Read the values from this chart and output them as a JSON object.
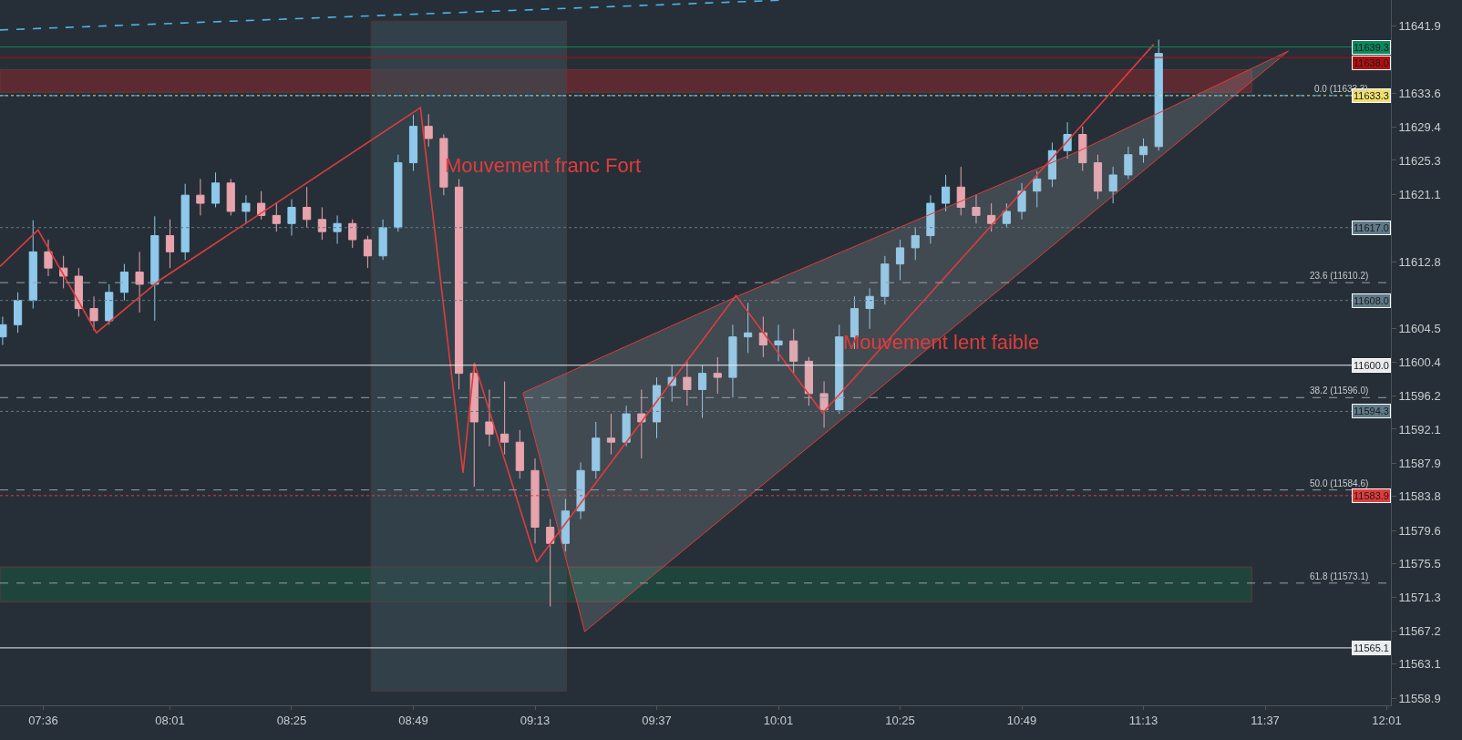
{
  "chart_data": {
    "type": "candlestick",
    "x": [
      7.4667,
      7.5167,
      7.5667,
      7.6167,
      7.6667,
      7.7167,
      7.7667,
      7.8167,
      7.8667,
      7.9167,
      7.9667,
      8.0167,
      8.0667,
      8.1167,
      8.1667,
      8.2167,
      8.2667,
      8.3167,
      8.3667,
      8.4167,
      8.4667,
      8.5167,
      8.5667,
      8.6167,
      8.6667,
      8.7167,
      8.7667,
      8.8167,
      8.8667,
      8.9167,
      8.9667,
      9.0167,
      9.0667,
      9.1167,
      9.1667,
      9.2167,
      9.2667,
      9.3167,
      9.3667,
      9.4167,
      9.4667,
      9.5167,
      9.5667,
      9.6167,
      9.6667,
      9.7167,
      9.7667,
      9.8167,
      9.8667,
      9.9167,
      9.9667,
      10.0167,
      10.0667,
      10.1167,
      10.1667,
      10.2167,
      10.2667,
      10.3167,
      10.3667,
      10.4167,
      10.4667,
      10.5167,
      10.5667,
      10.6167,
      10.6667,
      10.7167,
      10.7667,
      10.8167,
      10.8667,
      10.9167,
      10.9667,
      11.0167,
      11.0667,
      11.1167,
      11.1667,
      11.2167,
      11.2667
    ],
    "ohlc": [
      [
        11603.5,
        11606,
        11602.5,
        11605
      ],
      [
        11605,
        11609,
        11604,
        11608
      ],
      [
        11608,
        11617.9,
        11607,
        11614
      ],
      [
        11614,
        11615.5,
        11611,
        11612
      ],
      [
        11612,
        11613.5,
        11609.5,
        11611
      ],
      [
        11611,
        11612,
        11606,
        11607
      ],
      [
        11607,
        11608.5,
        11604.3,
        11605.5
      ],
      [
        11605.5,
        11610,
        11605,
        11609
      ],
      [
        11609,
        11612.5,
        11608,
        11611.5
      ],
      [
        11611.5,
        11614,
        11606.5,
        11610
      ],
      [
        11610,
        11618.4,
        11605.5,
        11616
      ],
      [
        11616,
        11618,
        11612,
        11614
      ],
      [
        11614,
        11622.4,
        11613,
        11621
      ],
      [
        11621,
        11623,
        11618.5,
        11620
      ],
      [
        11620,
        11623.8,
        11619.5,
        11622.5
      ],
      [
        11622.5,
        11623,
        11618.5,
        11619
      ],
      [
        11619,
        11621,
        11617.5,
        11620
      ],
      [
        11620,
        11621.5,
        11618,
        11618.5
      ],
      [
        11618.5,
        11620,
        11616.5,
        11617.5
      ],
      [
        11617.5,
        11620.5,
        11616,
        11619.5
      ],
      [
        11619.5,
        11622,
        11617,
        11618
      ],
      [
        11618,
        11619.5,
        11615.5,
        11616.5
      ],
      [
        11616.5,
        11618.5,
        11615,
        11617.5
      ],
      [
        11617.5,
        11618,
        11614.5,
        11615.5
      ],
      [
        11615.5,
        11616,
        11612,
        11613.5
      ],
      [
        11613.5,
        11618,
        11613,
        11617
      ],
      [
        11617,
        11626,
        11616.5,
        11625
      ],
      [
        11625,
        11630.9,
        11624,
        11629.5
      ],
      [
        11629.5,
        11631,
        11627,
        11628
      ],
      [
        11628,
        11628.5,
        11621,
        11622
      ],
      [
        11622,
        11623,
        11597,
        11599
      ],
      [
        11599,
        11600,
        11585,
        11593
      ],
      [
        11593,
        11597,
        11590,
        11591.5
      ],
      [
        11591.5,
        11598,
        11589,
        11590.5
      ],
      [
        11590.5,
        11592,
        11586,
        11587
      ],
      [
        11587,
        11588.5,
        11578,
        11580
      ],
      [
        11580,
        11581,
        11570.2,
        11578
      ],
      [
        11578,
        11583.5,
        11577,
        11582
      ],
      [
        11582,
        11588,
        11581,
        11587
      ],
      [
        11587,
        11593,
        11586,
        11591
      ],
      [
        11591,
        11594,
        11589,
        11590.5
      ],
      [
        11590.5,
        11595,
        11590,
        11594
      ],
      [
        11594,
        11597,
        11588.5,
        11593
      ],
      [
        11593,
        11598.5,
        11591,
        11597.5
      ],
      [
        11597.5,
        11600,
        11595.5,
        11598.5
      ],
      [
        11598.5,
        11600.5,
        11595,
        11597
      ],
      [
        11597,
        11600,
        11593.5,
        11599
      ],
      [
        11599,
        11601,
        11596.5,
        11598.5
      ],
      [
        11598.5,
        11605,
        11596,
        11603.5
      ],
      [
        11603.5,
        11607.7,
        11601.5,
        11604
      ],
      [
        11604,
        11606,
        11601,
        11602.5
      ],
      [
        11602.5,
        11605,
        11600.5,
        11603
      ],
      [
        11603,
        11604.5,
        11599,
        11600.5
      ],
      [
        11600.5,
        11601,
        11595,
        11596.5
      ],
      [
        11596.5,
        11598,
        11592.3,
        11594.5
      ],
      [
        11594.5,
        11605,
        11594,
        11603.5
      ],
      [
        11603.5,
        11608.5,
        11602,
        11607
      ],
      [
        11607,
        11609.5,
        11604.5,
        11608.5
      ],
      [
        11608.5,
        11613.5,
        11607.5,
        11612.5
      ],
      [
        11612.5,
        11615.5,
        11610.5,
        11614.5
      ],
      [
        11614.5,
        11617,
        11613,
        11616
      ],
      [
        11616,
        11621,
        11615,
        11620
      ],
      [
        11620,
        11623.5,
        11619,
        11622
      ],
      [
        11622,
        11624.5,
        11618.5,
        11619.5
      ],
      [
        11619.5,
        11621,
        11617.5,
        11618.5
      ],
      [
        11618.5,
        11620,
        11616.5,
        11617.5
      ],
      [
        11617.5,
        11620,
        11617,
        11619
      ],
      [
        11619,
        11622.5,
        11618,
        11621.5
      ],
      [
        11621.5,
        11624,
        11619.5,
        11623
      ],
      [
        11623,
        11627.5,
        11622,
        11626.5
      ],
      [
        11626.5,
        11630,
        11625.5,
        11628.5
      ],
      [
        11628.5,
        11629.5,
        11624,
        11625
      ],
      [
        11625,
        11626,
        11620.5,
        11621.5
      ],
      [
        11621.5,
        11624.5,
        11620,
        11623.5
      ],
      [
        11623.5,
        11627,
        11623,
        11626
      ],
      [
        11626,
        11628,
        11625,
        11627
      ],
      [
        11627,
        11640.2,
        11626.5,
        11638.5
      ]
    ],
    "series": [
      {
        "type": "area",
        "color": "#e03c3c",
        "x": [
          9.177,
          9.887,
          11.002,
          11.693,
          9.38,
          9.177
        ],
        "values": [
          11596.6,
          11608.6,
          11626.4,
          11638.8,
          11567.1,
          11596.6
        ]
      },
      {
        "type": "line",
        "color": "#e03c3c",
        "x": [
          7.458,
          7.583,
          7.775,
          7.983,
          8.84,
          8.98,
          9.017,
          9.222,
          9.877,
          10.162,
          11.008,
          11.25
        ],
        "values": [
          11612.2,
          11616.7,
          11604.0,
          11610.5,
          11631.8,
          11586.7,
          11600.3,
          11575.7,
          11608.6,
          11594.1,
          11629.4,
          11639.6
        ]
      },
      {
        "type": "line",
        "color": "#4fb3e8",
        "line_style": "dashed",
        "x": [
          7.458,
          10.042
        ],
        "values": [
          11641.4,
          11645.1
        ]
      }
    ],
    "ref_lines": [
      {
        "axis": "y",
        "value": 11639.3,
        "label": "11639.3",
        "color": "#0b8a5e",
        "line_style": "solid"
      },
      {
        "axis": "y",
        "value": 11638.0,
        "label": "11638.0",
        "color": "#b01010",
        "line_style": "solid"
      },
      {
        "axis": "y",
        "value": 11633.3,
        "label": "11633.3",
        "color": "#f0e070",
        "line_style": "dotted"
      },
      {
        "axis": "y",
        "value": 11633.3,
        "label": "0.0 (11633.3)",
        "color": "#5a9fc8",
        "line_style": "dashed"
      },
      {
        "axis": "y",
        "value": 11617.0,
        "label": "11617.0",
        "color": "#5f7a88",
        "line_style": "dotted"
      },
      {
        "axis": "y",
        "value": 11610.2,
        "label": "23.6 (11610.2)",
        "color": "#9aa0a6",
        "line_style": "dashed"
      },
      {
        "axis": "y",
        "value": 11608.0,
        "label": "11608.0",
        "color": "#5f7a88",
        "line_style": "dotted"
      },
      {
        "axis": "y",
        "value": 11600.0,
        "label": "11600.0",
        "color": "#e8ecef",
        "line_style": "solid"
      },
      {
        "axis": "y",
        "value": 11596.0,
        "label": "38.2 (11596.0)",
        "color": "#9aa0a6",
        "line_style": "dashed"
      },
      {
        "axis": "y",
        "value": 11594.3,
        "label": "11594.3",
        "color": "#5f7a88",
        "line_style": "dotted"
      },
      {
        "axis": "y",
        "value": 11584.6,
        "label": "50.0 (11584.6)",
        "color": "#9aa0a6",
        "line_style": "dashed"
      },
      {
        "axis": "y",
        "value": 11583.9,
        "label": "11583.9",
        "color": "#e03c3c",
        "line_style": "dotted"
      },
      {
        "axis": "y",
        "value": 11573.1,
        "label": "61.8 (11573.1)",
        "color": "#9aa0a6",
        "line_style": "dashed"
      },
      {
        "axis": "y",
        "value": 11565.1,
        "label": "11565.1",
        "color": "#e8ecef",
        "line_style": "solid"
      }
    ],
    "bands": [
      {
        "axis": "y",
        "from": 11633.7,
        "to": 11636.5,
        "color": "#6a2a30"
      },
      {
        "axis": "y",
        "from": 11570.8,
        "to": 11575.1,
        "color": "#1d4a3e"
      },
      {
        "axis": "x",
        "from": 8.678,
        "to": 9.32,
        "color": "#3b4c55"
      }
    ],
    "annotations": [
      {
        "text": "Mouvement franc Fort",
        "x": 8.915,
        "y": 11624.7
      },
      {
        "text": "Mouvement lent faible",
        "x": 10.222,
        "y": 11602.9
      }
    ],
    "xlim": [
      7.458,
      12.03
    ],
    "xticks": [
      {
        "value": 7.6,
        "label": "07:36"
      },
      {
        "value": 8.0167,
        "label": "08:01"
      },
      {
        "value": 8.4167,
        "label": "08:25"
      },
      {
        "value": 8.8167,
        "label": "08:49"
      },
      {
        "value": 9.2167,
        "label": "09:13"
      },
      {
        "value": 9.6167,
        "label": "09:37"
      },
      {
        "value": 10.0167,
        "label": "10:01"
      },
      {
        "value": 10.4167,
        "label": "10:25"
      },
      {
        "value": 10.8167,
        "label": "10:49"
      },
      {
        "value": 11.2167,
        "label": "11:13"
      },
      {
        "value": 11.6167,
        "label": "11:37"
      },
      {
        "value": 12.0167,
        "label": "12:01"
      }
    ],
    "ylim": [
      11558.0,
      11645.1
    ],
    "yticks": [
      11558.9,
      11563.1,
      11567.2,
      11571.3,
      11575.5,
      11579.6,
      11583.8,
      11587.9,
      11592.1,
      11596.2,
      11600.4,
      11604.5,
      11612.8,
      11621.1,
      11625.3,
      11629.4,
      11633.6,
      11641.9
    ],
    "grid": false
  }
}
